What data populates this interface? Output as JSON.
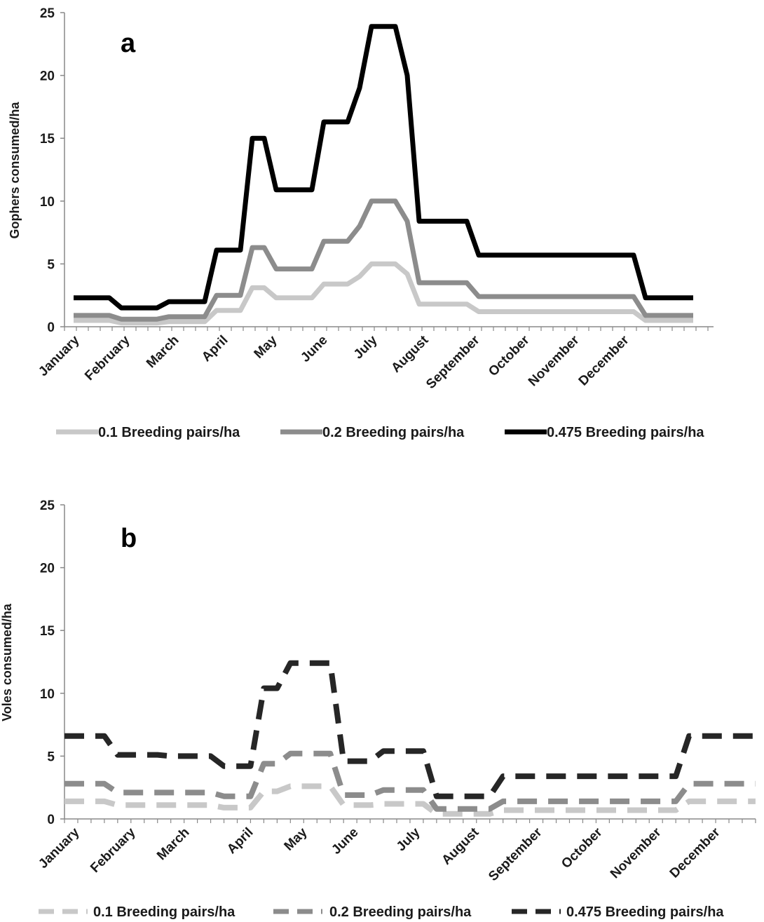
{
  "chart_data": [
    {
      "type": "line",
      "panel_label": "a",
      "title": "",
      "xlabel": "",
      "ylabel": "Gophers consumed/ha",
      "ylim": [
        0,
        25
      ],
      "yticks": [
        "0",
        "5",
        "10",
        "15",
        "20",
        "25"
      ],
      "month_labels": [
        "January",
        "February",
        "March",
        "April",
        "May",
        "June",
        "July",
        "August",
        "September",
        "October",
        "November",
        "December"
      ],
      "line_style": "solid",
      "grid": false,
      "legend_position": "bottom",
      "series": [
        {
          "name": "0.1 Breeding pairs/ha",
          "color": "#c8c8c8",
          "values": [
            0.5,
            0.5,
            0.5,
            0.5,
            0.3,
            0.3,
            0.3,
            0.3,
            0.4,
            0.4,
            0.4,
            0.4,
            1.3,
            1.3,
            1.3,
            3.1,
            3.1,
            2.3,
            2.3,
            2.3,
            2.3,
            3.4,
            3.4,
            3.4,
            4.0,
            5.0,
            5.0,
            5.0,
            4.2,
            1.8,
            1.8,
            1.8,
            1.8,
            1.8,
            1.2,
            1.2,
            1.2,
            1.2,
            1.2,
            1.2,
            1.2,
            1.2,
            1.2,
            1.2,
            1.2,
            1.2,
            1.2,
            1.2,
            0.5,
            0.5,
            0.5,
            0.5,
            0.5
          ]
        },
        {
          "name": "0.2 Breeding pairs/ha",
          "color": "#8c8c8c",
          "values": [
            0.9,
            0.9,
            0.9,
            0.9,
            0.6,
            0.6,
            0.6,
            0.6,
            0.8,
            0.8,
            0.8,
            0.8,
            2.5,
            2.5,
            2.5,
            6.3,
            6.3,
            4.6,
            4.6,
            4.6,
            4.6,
            6.8,
            6.8,
            6.8,
            8.0,
            10.0,
            10.0,
            10.0,
            8.4,
            3.5,
            3.5,
            3.5,
            3.5,
            3.5,
            2.4,
            2.4,
            2.4,
            2.4,
            2.4,
            2.4,
            2.4,
            2.4,
            2.4,
            2.4,
            2.4,
            2.4,
            2.4,
            2.4,
            0.9,
            0.9,
            0.9,
            0.9,
            0.9
          ]
        },
        {
          "name": "0.475 Breeding pairs/ha",
          "color": "#000000",
          "values": [
            2.3,
            2.3,
            2.3,
            2.3,
            1.5,
            1.5,
            1.5,
            1.5,
            2.0,
            2.0,
            2.0,
            2.0,
            6.1,
            6.1,
            6.1,
            15.0,
            15.0,
            10.9,
            10.9,
            10.9,
            10.9,
            16.3,
            16.3,
            16.3,
            19.0,
            23.9,
            23.9,
            23.9,
            20.0,
            8.4,
            8.4,
            8.4,
            8.4,
            8.4,
            5.7,
            5.7,
            5.7,
            5.7,
            5.7,
            5.7,
            5.7,
            5.7,
            5.7,
            5.7,
            5.7,
            5.7,
            5.7,
            5.7,
            2.3,
            2.3,
            2.3,
            2.3,
            2.3
          ]
        }
      ]
    },
    {
      "type": "line",
      "panel_label": "b",
      "title": "",
      "xlabel": "",
      "ylabel": "Voles consumed/ha",
      "ylim": [
        0,
        25
      ],
      "yticks": [
        "0",
        "5",
        "10",
        "15",
        "20",
        "25"
      ],
      "month_labels": [
        "January",
        "February",
        "March",
        "April",
        "May",
        "June",
        "July",
        "August",
        "September",
        "October",
        "November",
        "December"
      ],
      "line_style": "dashed",
      "grid": false,
      "legend_position": "bottom",
      "series": [
        {
          "name": "0.1 Breeding pairs/ha",
          "color": "#c8c8c8",
          "values": [
            1.4,
            1.4,
            1.4,
            1.4,
            1.1,
            1.1,
            1.1,
            1.1,
            1.1,
            1.1,
            1.1,
            1.1,
            0.9,
            0.9,
            0.9,
            2.2,
            2.2,
            2.6,
            2.6,
            2.6,
            2.6,
            1.1,
            1.1,
            1.1,
            1.2,
            1.2,
            1.2,
            1.2,
            0.4,
            0.4,
            0.4,
            0.4,
            0.4,
            0.7,
            0.7,
            0.7,
            0.7,
            0.7,
            0.7,
            0.7,
            0.7,
            0.7,
            0.7,
            0.7,
            0.7,
            0.7,
            0.7,
            1.4,
            1.4,
            1.4,
            1.4,
            1.4,
            1.4
          ]
        },
        {
          "name": "0.2 Breeding pairs/ha",
          "color": "#8c8c8c",
          "values": [
            2.8,
            2.8,
            2.8,
            2.8,
            2.1,
            2.1,
            2.1,
            2.1,
            2.1,
            2.1,
            2.1,
            2.1,
            1.8,
            1.8,
            1.8,
            4.4,
            4.4,
            5.2,
            5.2,
            5.2,
            5.2,
            1.9,
            1.9,
            1.9,
            2.3,
            2.3,
            2.3,
            2.3,
            0.8,
            0.8,
            0.8,
            0.8,
            0.8,
            1.4,
            1.4,
            1.4,
            1.4,
            1.4,
            1.4,
            1.4,
            1.4,
            1.4,
            1.4,
            1.4,
            1.4,
            1.4,
            1.4,
            2.8,
            2.8,
            2.8,
            2.8,
            2.8,
            2.8
          ]
        },
        {
          "name": "0.475 Breeding pairs/ha",
          "color": "#262626",
          "values": [
            6.6,
            6.6,
            6.6,
            6.6,
            5.1,
            5.1,
            5.1,
            5.1,
            5.0,
            5.0,
            5.0,
            5.0,
            4.2,
            4.2,
            4.2,
            10.4,
            10.4,
            12.4,
            12.4,
            12.4,
            12.4,
            4.6,
            4.6,
            4.6,
            5.4,
            5.4,
            5.4,
            5.4,
            1.8,
            1.8,
            1.8,
            1.8,
            1.8,
            3.4,
            3.4,
            3.4,
            3.4,
            3.4,
            3.4,
            3.4,
            3.4,
            3.4,
            3.4,
            3.4,
            3.4,
            3.4,
            3.4,
            6.6,
            6.6,
            6.6,
            6.6,
            6.6,
            6.6
          ]
        }
      ]
    }
  ]
}
